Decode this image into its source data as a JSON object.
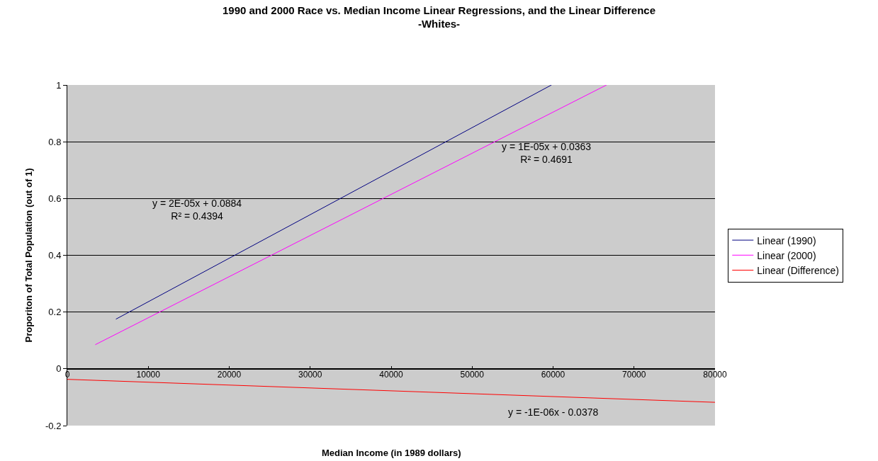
{
  "chart_data": {
    "type": "line",
    "title": "1990 and 2000 Race vs. Median Income Linear Regressions, and the Linear Difference",
    "subtitle": "-Whites-",
    "xlabel": "Median Income (in 1989 dollars)",
    "ylabel": "Proporiton of Total Population (out of 1)",
    "series": [
      {
        "name": "Linear (1990)",
        "color": "#000080",
        "x": [
          6000,
          59800
        ],
        "values": [
          0.175,
          1.0
        ]
      },
      {
        "name": "Linear (2000)",
        "color": "#ff00ff",
        "x": [
          3450,
          66600
        ],
        "values": [
          0.085,
          1.0
        ]
      },
      {
        "name": "Linear (Difference)",
        "color": "#ff0000",
        "x": [
          0,
          80000
        ],
        "values": [
          -0.037,
          -0.118
        ]
      }
    ],
    "annotations": [
      "y = 2E-05x + 0.0884\nR² = 0.4394",
      "y = 1E-05x + 0.0363\nR² = 0.4691",
      "y = -1E-06x - 0.0378"
    ],
    "xlim": [
      0,
      80000
    ],
    "xticks": [
      0,
      10000,
      20000,
      30000,
      40000,
      50000,
      60000,
      70000,
      80000
    ],
    "ylim": [
      -0.2,
      1
    ],
    "yticks": [
      -0.2,
      0,
      0.2,
      0.4,
      0.6,
      0.8,
      1
    ],
    "grid": "y",
    "legend": "right",
    "line_style": "solid",
    "marker": "none"
  }
}
